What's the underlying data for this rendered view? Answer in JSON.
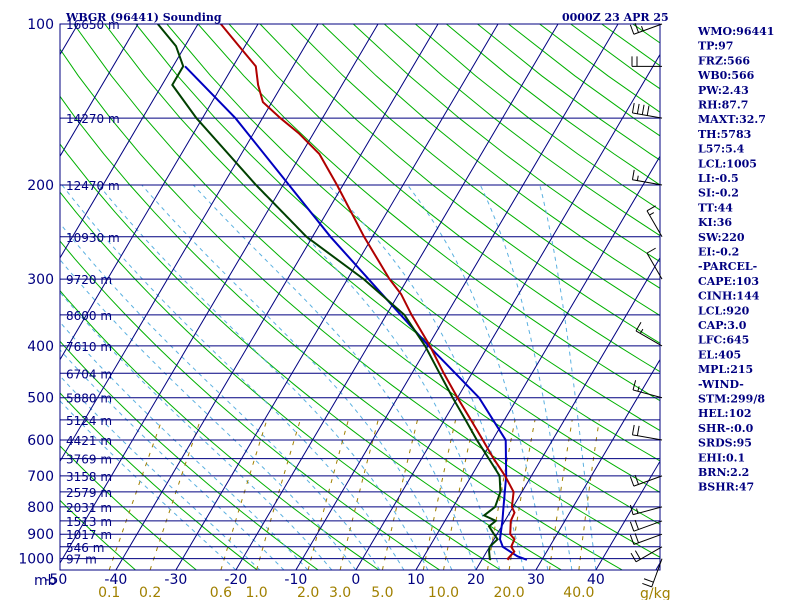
{
  "header": {
    "station": "WBGR (96441) Sounding",
    "time": "0000Z 23 APR 25"
  },
  "axis": {
    "x_unit_label": "mb",
    "mixing_unit_label": "g/kg"
  },
  "indices": [
    "WMO:96441",
    "TP:97",
    "FRZ:566",
    "WB0:566",
    "PW:2.43",
    "RH:87.7",
    "MAXT:32.7",
    "TH:5783",
    "L57:5.4",
    "LCL:1005",
    "LI:-0.5",
    "SI:-0.2",
    "TT:44",
    "KI:36",
    "SW:220",
    "EI:-0.2",
    "-PARCEL-",
    "CAPE:103",
    "CINH:144",
    "LCL:920",
    "CAP:3.0",
    "LFC:645",
    "EL:405",
    "MPL:215",
    "-WIND-",
    "STM:299/8",
    "HEL:102",
    "SHR-:0.0",
    "SRDS:95",
    "EHI:0.1",
    "BRN:2.2",
    "BSHR:47"
  ],
  "colors": {
    "frame": "#000080",
    "temperature": "#b00000",
    "dewpoint": "#004000",
    "parcel": "#0000c0",
    "dry_adiabat": "#00b000",
    "moist_adiabat": "#5ab0e0",
    "mixing_ratio": "#a08000"
  },
  "chart_data": {
    "type": "skew-t",
    "pressure_levels": [
      {
        "p": 100,
        "label": "100",
        "height": "16650 m"
      },
      {
        "p": 150,
        "label": "",
        "height": "14270 m"
      },
      {
        "p": 200,
        "label": "200",
        "height": "12470 m"
      },
      {
        "p": 250,
        "label": "",
        "height": "10930 m"
      },
      {
        "p": 300,
        "label": "300",
        "height": "9720 m"
      },
      {
        "p": 350,
        "label": "",
        "height": "8600 m"
      },
      {
        "p": 400,
        "label": "400",
        "height": "7610 m"
      },
      {
        "p": 450,
        "label": "",
        "height": "6704 m"
      },
      {
        "p": 500,
        "label": "500",
        "height": "5880 m"
      },
      {
        "p": 550,
        "label": "",
        "height": "5124 m"
      },
      {
        "p": 600,
        "label": "600",
        "height": "4421 m"
      },
      {
        "p": 650,
        "label": "",
        "height": "3769 m"
      },
      {
        "p": 700,
        "label": "700",
        "height": "3158 m"
      },
      {
        "p": 750,
        "label": "",
        "height": "2579 m"
      },
      {
        "p": 800,
        "label": "800",
        "height": "2031 m"
      },
      {
        "p": 850,
        "label": "",
        "height": "1513 m"
      },
      {
        "p": 900,
        "label": "900",
        "height": "1017 m"
      },
      {
        "p": 950,
        "label": "",
        "height": "546 m"
      },
      {
        "p": 1000,
        "label": "1000",
        "height": "97 m"
      }
    ],
    "temperature_ticks": [
      -50,
      -40,
      -30,
      -20,
      -10,
      0,
      10,
      20,
      30,
      40
    ],
    "temperature_tick_labels": [
      "-50",
      "-40",
      "-30",
      "-20",
      "-10",
      "0",
      "10",
      "20",
      "30",
      "40"
    ],
    "mixing_ratio_labels": [
      "0.1",
      "0.2",
      "0.6",
      "1.0",
      "2.0",
      "3.0",
      "5.0",
      "10.0",
      "20.0",
      "40.0"
    ],
    "temperature_profile": [
      {
        "p": 1005,
        "t": 24.5
      },
      {
        "p": 1000,
        "t": 24.2
      },
      {
        "p": 970,
        "t": 24.6
      },
      {
        "p": 950,
        "t": 23.6
      },
      {
        "p": 920,
        "t": 23.4
      },
      {
        "p": 900,
        "t": 22.2
      },
      {
        "p": 850,
        "t": 21.0
      },
      {
        "p": 820,
        "t": 20.8
      },
      {
        "p": 800,
        "t": 19.8
      },
      {
        "p": 750,
        "t": 18.6
      },
      {
        "p": 700,
        "t": 15.6
      },
      {
        "p": 650,
        "t": 12.0
      },
      {
        "p": 600,
        "t": 8.4
      },
      {
        "p": 550,
        "t": 4.4
      },
      {
        "p": 500,
        "t": 0.0
      },
      {
        "p": 450,
        "t": -4.7
      },
      {
        "p": 400,
        "t": -9.7
      },
      {
        "p": 350,
        "t": -15.8
      },
      {
        "p": 320,
        "t": -19.6
      },
      {
        "p": 300,
        "t": -23.0
      },
      {
        "p": 250,
        "t": -31.4
      },
      {
        "p": 200,
        "t": -41.0
      },
      {
        "p": 175,
        "t": -47.0
      },
      {
        "p": 160,
        "t": -52.5
      },
      {
        "p": 150,
        "t": -57.0
      },
      {
        "p": 140,
        "t": -61.5
      },
      {
        "p": 130,
        "t": -64.0
      },
      {
        "p": 120,
        "t": -66.2
      },
      {
        "p": 110,
        "t": -71.0
      },
      {
        "p": 100,
        "t": -76.2
      }
    ],
    "dewpoint_profile": [
      {
        "p": 1005,
        "t": 21.5
      },
      {
        "p": 1000,
        "t": 21.2
      },
      {
        "p": 970,
        "t": 20.4
      },
      {
        "p": 950,
        "t": 20.0
      },
      {
        "p": 920,
        "t": 20.6
      },
      {
        "p": 900,
        "t": 19.5
      },
      {
        "p": 870,
        "t": 17.9
      },
      {
        "p": 850,
        "t": 18.5
      },
      {
        "p": 830,
        "t": 16.0
      },
      {
        "p": 800,
        "t": 17.0
      },
      {
        "p": 750,
        "t": 16.4
      },
      {
        "p": 700,
        "t": 14.7
      },
      {
        "p": 650,
        "t": 11.2
      },
      {
        "p": 600,
        "t": 7.4
      },
      {
        "p": 550,
        "t": 3.5
      },
      {
        "p": 500,
        "t": -0.8
      },
      {
        "p": 450,
        "t": -5.4
      },
      {
        "p": 400,
        "t": -10.5
      },
      {
        "p": 350,
        "t": -17.0
      },
      {
        "p": 300,
        "t": -27.3
      },
      {
        "p": 250,
        "t": -41.0
      },
      {
        "p": 200,
        "t": -54.5
      },
      {
        "p": 150,
        "t": -71.0
      },
      {
        "p": 130,
        "t": -78.3
      },
      {
        "p": 120,
        "t": -78.3
      },
      {
        "p": 110,
        "t": -81.5
      },
      {
        "p": 100,
        "t": -86.7
      }
    ],
    "parcel_profile": [
      {
        "p": 1005,
        "t": 27.5
      },
      {
        "p": 990,
        "t": 25.6
      },
      {
        "p": 950,
        "t": 22.2
      },
      {
        "p": 920,
        "t": 21.0
      },
      {
        "p": 900,
        "t": 20.6
      },
      {
        "p": 850,
        "t": 19.6
      },
      {
        "p": 800,
        "t": 18.4
      },
      {
        "p": 700,
        "t": 15.8
      },
      {
        "p": 600,
        "t": 12.2
      },
      {
        "p": 500,
        "t": 3.6
      },
      {
        "p": 400,
        "t": -9.9
      },
      {
        "p": 300,
        "t": -26.5
      },
      {
        "p": 250,
        "t": -37.0
      },
      {
        "p": 200,
        "t": -49.0
      },
      {
        "p": 150,
        "t": -64.5
      },
      {
        "p": 120,
        "t": -78.0
      }
    ],
    "wind_barbs": [
      {
        "p": 1000,
        "dir": 200,
        "spd": 20
      },
      {
        "p": 950,
        "dir": 240,
        "spd": 20
      },
      {
        "p": 900,
        "dir": 250,
        "spd": 20
      },
      {
        "p": 850,
        "dir": 250,
        "spd": 20
      },
      {
        "p": 800,
        "dir": 255,
        "spd": 15
      },
      {
        "p": 700,
        "dir": 250,
        "spd": 20
      },
      {
        "p": 600,
        "dir": 280,
        "spd": 20
      },
      {
        "p": 500,
        "dir": 285,
        "spd": 15
      },
      {
        "p": 400,
        "dir": 300,
        "spd": 15
      },
      {
        "p": 300,
        "dir": 330,
        "spd": 10
      },
      {
        "p": 250,
        "dir": 330,
        "spd": 15
      },
      {
        "p": 200,
        "dir": 280,
        "spd": 15
      },
      {
        "p": 150,
        "dir": 280,
        "spd": 40
      },
      {
        "p": 120,
        "dir": 270,
        "spd": 20
      },
      {
        "p": 100,
        "dir": 250,
        "spd": 25
      }
    ]
  }
}
